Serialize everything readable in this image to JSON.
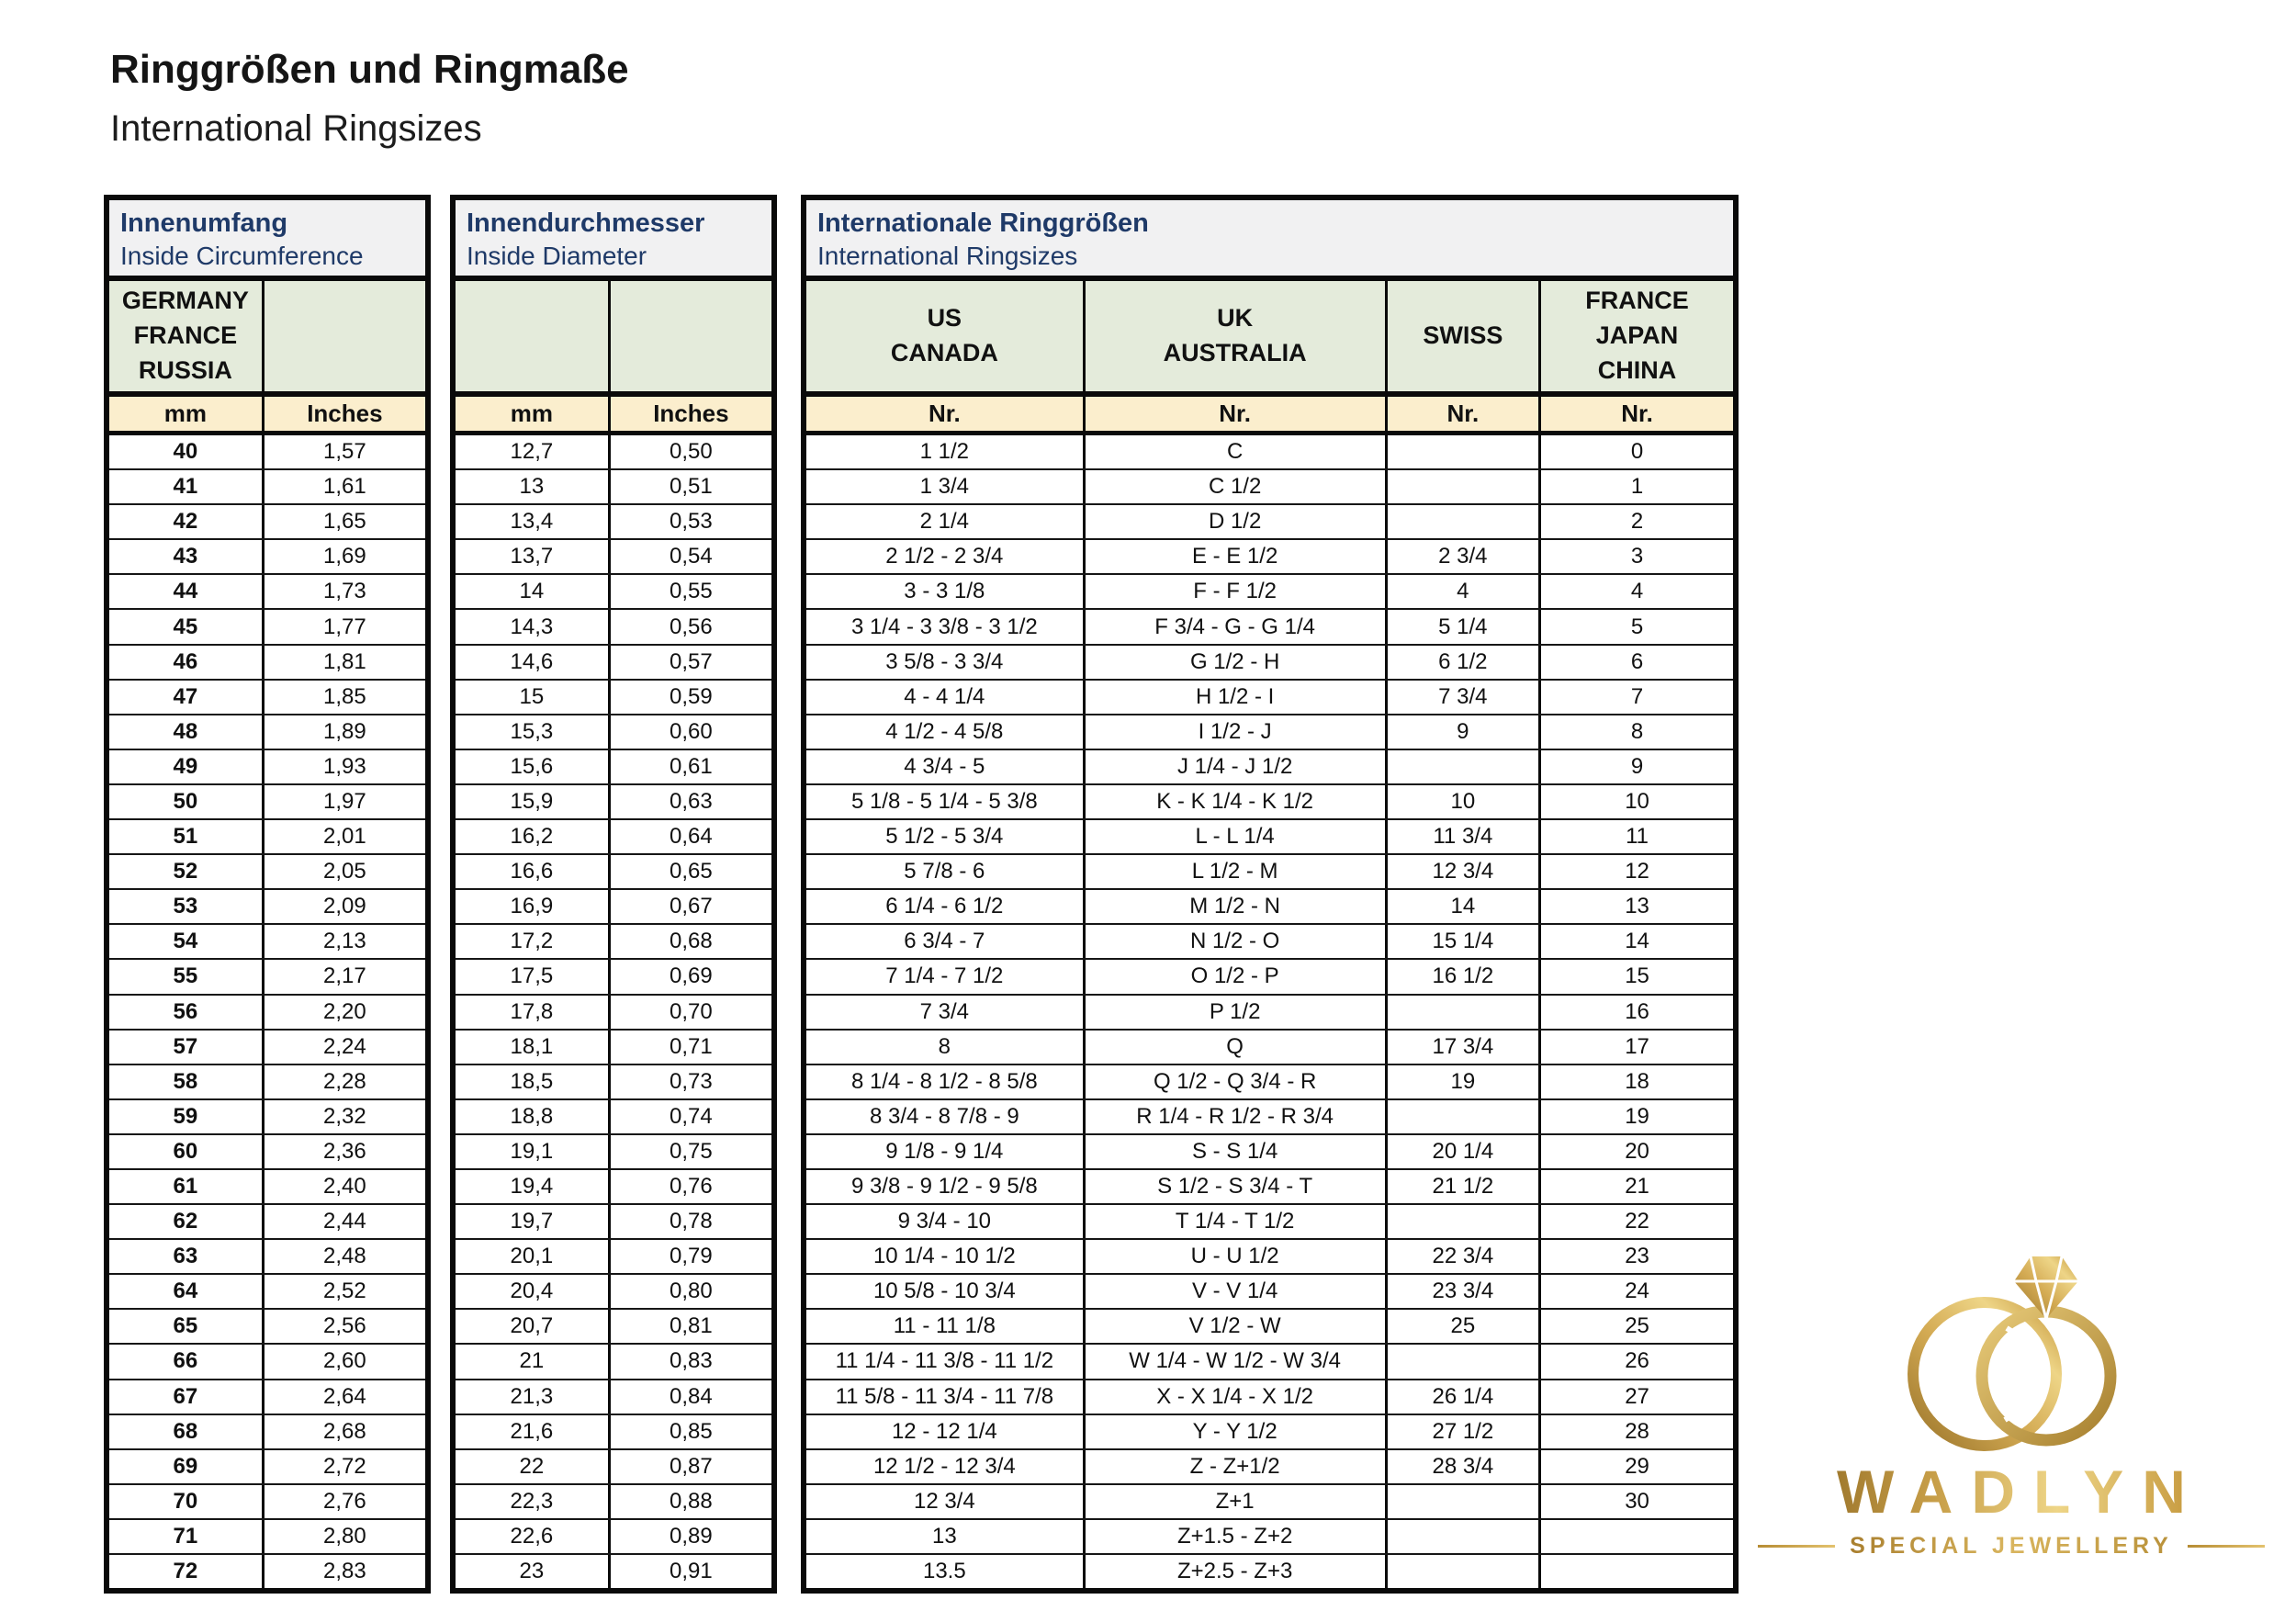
{
  "page": {
    "title": "Ringgrößen und Ringmaße",
    "subtitle": "International Ringsizes"
  },
  "tables": {
    "circumference": {
      "title_de": "Innenumfang",
      "title_en": "Inside Circumference",
      "region_header": "GERMANY\nFRANCE\nRUSSIA",
      "unit_headers": [
        "mm",
        "Inches"
      ],
      "rows": [
        [
          "40",
          "1,57"
        ],
        [
          "41",
          "1,61"
        ],
        [
          "42",
          "1,65"
        ],
        [
          "43",
          "1,69"
        ],
        [
          "44",
          "1,73"
        ],
        [
          "45",
          "1,77"
        ],
        [
          "46",
          "1,81"
        ],
        [
          "47",
          "1,85"
        ],
        [
          "48",
          "1,89"
        ],
        [
          "49",
          "1,93"
        ],
        [
          "50",
          "1,97"
        ],
        [
          "51",
          "2,01"
        ],
        [
          "52",
          "2,05"
        ],
        [
          "53",
          "2,09"
        ],
        [
          "54",
          "2,13"
        ],
        [
          "55",
          "2,17"
        ],
        [
          "56",
          "2,20"
        ],
        [
          "57",
          "2,24"
        ],
        [
          "58",
          "2,28"
        ],
        [
          "59",
          "2,32"
        ],
        [
          "60",
          "2,36"
        ],
        [
          "61",
          "2,40"
        ],
        [
          "62",
          "2,44"
        ],
        [
          "63",
          "2,48"
        ],
        [
          "64",
          "2,52"
        ],
        [
          "65",
          "2,56"
        ],
        [
          "66",
          "2,60"
        ],
        [
          "67",
          "2,64"
        ],
        [
          "68",
          "2,68"
        ],
        [
          "69",
          "2,72"
        ],
        [
          "70",
          "2,76"
        ],
        [
          "71",
          "2,80"
        ],
        [
          "72",
          "2,83"
        ]
      ]
    },
    "diameter": {
      "title_de": "Innendurchmesser",
      "title_en": "Inside Diameter",
      "unit_headers": [
        "mm",
        "Inches"
      ],
      "rows": [
        [
          "12,7",
          "0,50"
        ],
        [
          "13",
          "0,51"
        ],
        [
          "13,4",
          "0,53"
        ],
        [
          "13,7",
          "0,54"
        ],
        [
          "14",
          "0,55"
        ],
        [
          "14,3",
          "0,56"
        ],
        [
          "14,6",
          "0,57"
        ],
        [
          "15",
          "0,59"
        ],
        [
          "15,3",
          "0,60"
        ],
        [
          "15,6",
          "0,61"
        ],
        [
          "15,9",
          "0,63"
        ],
        [
          "16,2",
          "0,64"
        ],
        [
          "16,6",
          "0,65"
        ],
        [
          "16,9",
          "0,67"
        ],
        [
          "17,2",
          "0,68"
        ],
        [
          "17,5",
          "0,69"
        ],
        [
          "17,8",
          "0,70"
        ],
        [
          "18,1",
          "0,71"
        ],
        [
          "18,5",
          "0,73"
        ],
        [
          "18,8",
          "0,74"
        ],
        [
          "19,1",
          "0,75"
        ],
        [
          "19,4",
          "0,76"
        ],
        [
          "19,7",
          "0,78"
        ],
        [
          "20,1",
          "0,79"
        ],
        [
          "20,4",
          "0,80"
        ],
        [
          "20,7",
          "0,81"
        ],
        [
          "21",
          "0,83"
        ],
        [
          "21,3",
          "0,84"
        ],
        [
          "21,6",
          "0,85"
        ],
        [
          "22",
          "0,87"
        ],
        [
          "22,3",
          "0,88"
        ],
        [
          "22,6",
          "0,89"
        ],
        [
          "23",
          "0,91"
        ]
      ]
    },
    "international": {
      "title_de": "Internationale Ringgrößen",
      "title_en": "International Ringsizes",
      "region_headers": [
        "US\nCANADA",
        "UK\nAUSTRALIA",
        "SWISS",
        "FRANCE\nJAPAN\nCHINA"
      ],
      "unit_headers": [
        "Nr.",
        "Nr.",
        "Nr.",
        "Nr."
      ],
      "rows": [
        [
          "1 1/2",
          "C",
          "",
          "0"
        ],
        [
          "1 3/4",
          "C 1/2",
          "",
          "1"
        ],
        [
          "2 1/4",
          "D 1/2",
          "",
          "2"
        ],
        [
          "2 1/2 - 2 3/4",
          "E - E 1/2",
          "2 3/4",
          "3"
        ],
        [
          "3 - 3 1/8",
          "F - F 1/2",
          "4",
          "4"
        ],
        [
          "3 1/4 - 3 3/8 - 3 1/2",
          "F 3/4 - G - G 1/4",
          "5 1/4",
          "5"
        ],
        [
          "3 5/8 - 3 3/4",
          "G 1/2 - H",
          "6 1/2",
          "6"
        ],
        [
          "4 - 4 1/4",
          "H 1/2 - I",
          "7 3/4",
          "7"
        ],
        [
          "4 1/2  - 4 5/8",
          "I 1/2 - J",
          "9",
          "8"
        ],
        [
          "4 3/4 - 5",
          "J 1/4 - J 1/2",
          "",
          "9"
        ],
        [
          "5 1/8  - 5 1/4 - 5 3/8",
          "K - K 1/4 - K 1/2",
          "10",
          "10"
        ],
        [
          "5 1/2 - 5 3/4",
          "L - L 1/4",
          "11 3/4",
          "11"
        ],
        [
          "5 7/8 - 6",
          "L 1/2 - M",
          "12 3/4",
          "12"
        ],
        [
          "6 1/4 - 6 1/2",
          "M 1/2 - N",
          "14",
          "13"
        ],
        [
          "6 3/4 - 7",
          "N 1/2 - O",
          "15 1/4",
          "14"
        ],
        [
          "7 1/4 - 7 1/2",
          "O 1/2 - P",
          "16 1/2",
          "15"
        ],
        [
          "7 3/4",
          "P 1/2",
          "",
          "16"
        ],
        [
          "8",
          "Q",
          "17 3/4",
          "17"
        ],
        [
          "8 1/4 - 8 1/2 - 8 5/8",
          "Q 1/2  - Q 3/4 - R",
          "19",
          "18"
        ],
        [
          "8 3/4 - 8 7/8 - 9",
          "R 1/4 - R 1/2 - R 3/4",
          "",
          "19"
        ],
        [
          "9 1/8 - 9 1/4",
          "S - S 1/4",
          "20 1/4",
          "20"
        ],
        [
          "9 3/8 - 9 1/2 - 9 5/8",
          "S 1/2 - S 3/4 - T",
          "21 1/2",
          "21"
        ],
        [
          "9 3/4 - 10",
          "T 1/4 - T 1/2",
          "",
          "22"
        ],
        [
          "10 1/4 - 10 1/2",
          "U - U 1/2",
          "22 3/4",
          "23"
        ],
        [
          "10 5/8 - 10 3/4",
          "V - V 1/4",
          "23 3/4",
          "24"
        ],
        [
          "11 - 11 1/8",
          "V 1/2 - W",
          "25",
          "25"
        ],
        [
          "11 1/4 - 11 3/8 - 11 1/2",
          "W 1/4 - W 1/2 - W 3/4",
          "",
          "26"
        ],
        [
          "11 5/8 - 11 3/4 - 11 7/8",
          "X - X 1/4 - X 1/2",
          "26 1/4",
          "27"
        ],
        [
          "12 - 12 1/4",
          "Y - Y 1/2",
          "27 1/2",
          "28"
        ],
        [
          "12 1/2 - 12 3/4",
          "Z - Z+1/2",
          "28 3/4",
          "29"
        ],
        [
          "12 3/4",
          "Z+1",
          "",
          "30"
        ],
        [
          "13",
          "Z+1.5 - Z+2",
          "",
          ""
        ],
        [
          "13.5",
          "Z+2.5 - Z+3",
          "",
          ""
        ]
      ]
    }
  },
  "logo": {
    "brand": "WADLYN",
    "tagline": "SPECIAL JEWELLERY",
    "icon": "interlocked-rings-diamond-icon"
  },
  "colors": {
    "header_bg": "#f1f1f2",
    "region_bg": "#e4ebdb",
    "unit_bg": "#fbeecd",
    "heading_text": "#1f3a68",
    "gold_dark": "#9a742a",
    "gold_light": "#eed587"
  }
}
